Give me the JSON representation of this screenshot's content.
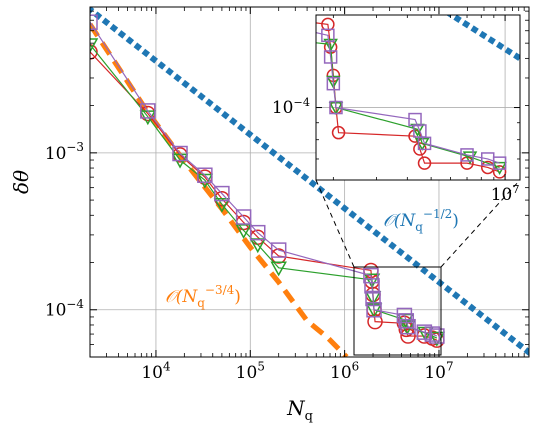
{
  "chart_data": {
    "type": "line",
    "xscale": "log",
    "yscale": "log",
    "xlim": [
      2000,
      90000000
    ],
    "ylim": [
      5e-05,
      0.0085
    ],
    "xlabel": "N_q",
    "ylabel": "δθ",
    "grid": true,
    "x_ticks": [
      {
        "value": 10000,
        "base": "10",
        "exp": "4"
      },
      {
        "value": 100000,
        "base": "10",
        "exp": "5"
      },
      {
        "value": 1000000,
        "base": "10",
        "exp": "6"
      },
      {
        "value": 10000000,
        "base": "10",
        "exp": "7"
      }
    ],
    "y_ticks": [
      {
        "value": 0.0001,
        "base": "10",
        "exp": "−4"
      },
      {
        "value": 0.001,
        "base": "10",
        "exp": "−3"
      }
    ],
    "reference_lines": [
      {
        "label_main": "𝒪(N",
        "label_sub": "q",
        "label_sup": "−1/2",
        "label_tail": ")",
        "color": "#1f77b4",
        "style": "dotted",
        "x": [
          2000,
          90000000
        ],
        "y": [
          0.0082,
          5.35e-05
        ]
      },
      {
        "label_main": "𝒪(N",
        "label_sub": "q",
        "label_sup": "−3/4",
        "label_tail": ")",
        "color": "#ff7f0e",
        "style": "dashed",
        "x": [
          2000,
          8000,
          18000,
          50000,
          100000,
          200000,
          400000,
          650000,
          900000,
          1050000
        ],
        "y": [
          0.0066,
          0.00185,
          0.00096,
          0.00044,
          0.00025,
          0.00015,
          8.5e-05,
          6.7e-05,
          5.5e-05,
          5e-05
        ]
      }
    ],
    "series": [
      {
        "color": "#d62728",
        "marker": "circle",
        "x": [
          2000,
          8200,
          18000,
          33000,
          50000,
          85000,
          120000,
          200000,
          1900000,
          1950000,
          2000000,
          2050000,
          2100000,
          4300000,
          4500000,
          4700000,
          7000000,
          8500000,
          9500000
        ],
        "y": [
          0.0044,
          0.00178,
          0.00097,
          0.0007,
          0.00051,
          0.00036,
          0.00029,
          0.00022,
          0.000178,
          0.000152,
          0.000125,
          0.0001,
          8.4e-05,
          8.2e-05,
          7.5e-05,
          6.8e-05,
          6.8e-05,
          6.6e-05,
          6.4e-05
        ]
      },
      {
        "color": "#2ca02c",
        "marker": "triangle",
        "x": [
          2000,
          8200,
          18000,
          33000,
          50000,
          85000,
          120000,
          200000,
          1950000,
          2000000,
          2050000,
          4400000,
          4600000,
          7200000,
          9500000
        ],
        "y": [
          0.0049,
          0.0017,
          0.0009,
          0.00067,
          0.00047,
          0.00032,
          0.00026,
          0.000185,
          0.000155,
          0.00012,
          0.0001,
          8.6e-05,
          7.8e-05,
          7.1e-05,
          6.6e-05
        ]
      },
      {
        "color": "#9467bd",
        "marker": "square",
        "x": [
          2000,
          8200,
          18000,
          33000,
          50000,
          85000,
          120000,
          200000,
          1900000,
          1950000,
          2000000,
          2050000,
          4300000,
          4500000,
          4700000,
          7000000,
          8500000,
          9500000
        ],
        "y": [
          0.0068,
          0.00185,
          0.00099,
          0.00072,
          0.00055,
          0.00039,
          0.00031,
          0.00024,
          0.000165,
          0.000142,
          0.000118,
          0.0001,
          9.2e-05,
          8.5e-05,
          7.8e-05,
          7.2e-05,
          7e-05,
          6.8e-05
        ]
      }
    ],
    "inset": {
      "xlim": [
        1700000,
        11500000
      ],
      "ylim": [
        6.05e-05,
        0.00019
      ],
      "x_ticks": [
        {
          "value": 10000000,
          "base": "10",
          "exp": "7"
        }
      ],
      "y_ticks": [
        {
          "value": 0.0001,
          "base": "10",
          "exp": "−4"
        }
      ]
    }
  }
}
